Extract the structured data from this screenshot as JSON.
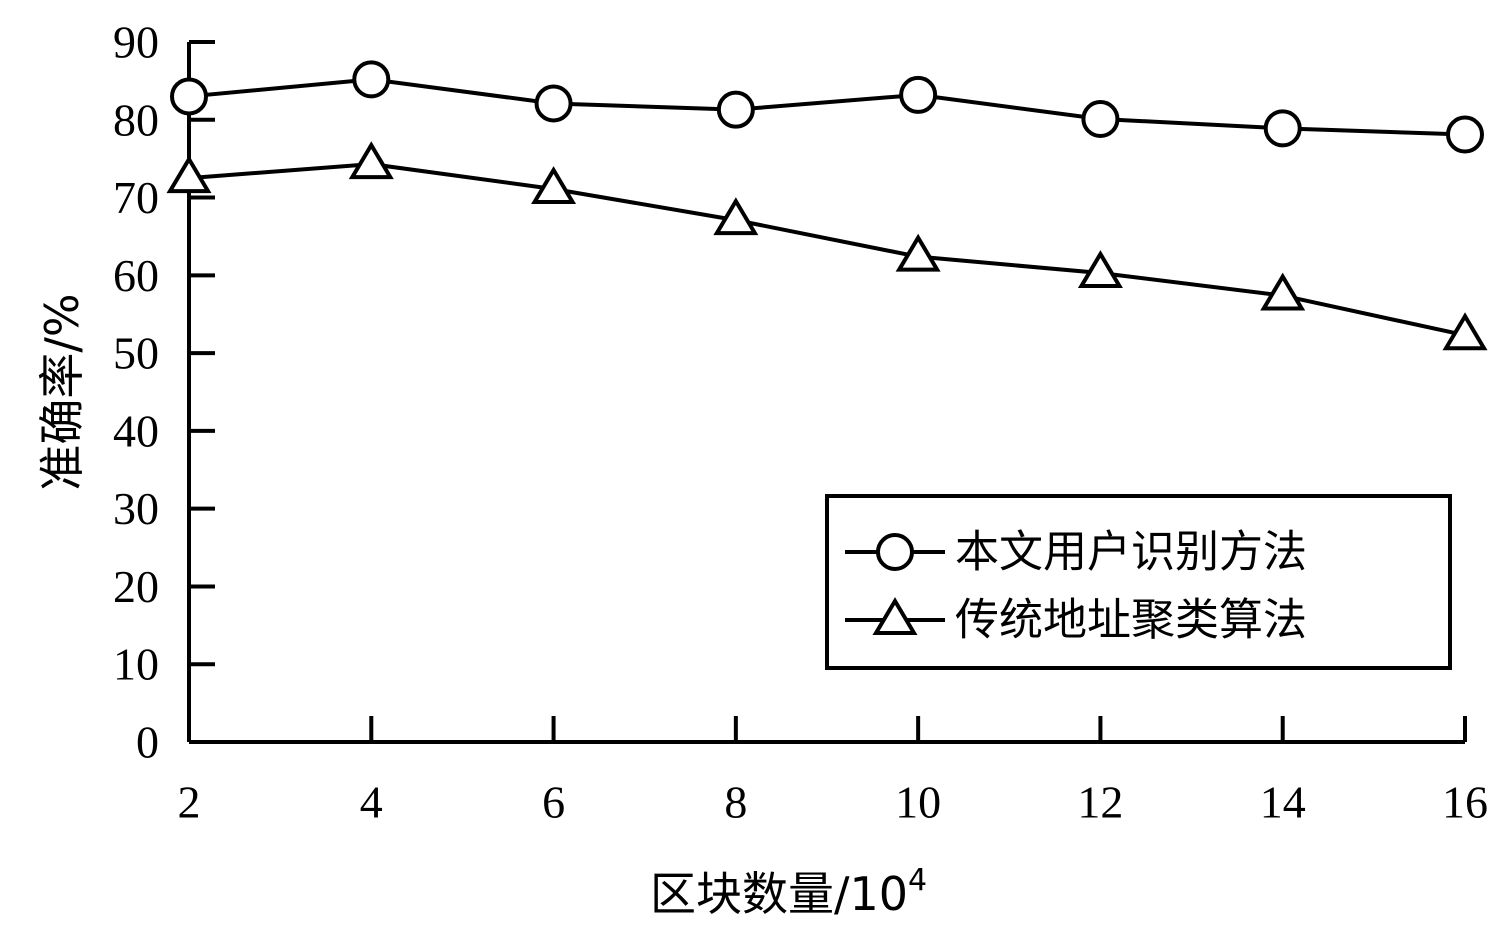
{
  "chart_data": {
    "type": "line",
    "title": "",
    "xlabel": "区块数量/10",
    "xlabel_superscript": "4",
    "ylabel": "准确率/%",
    "x": [
      2,
      4,
      6,
      8,
      10,
      12,
      14,
      16
    ],
    "xlim": [
      2,
      16
    ],
    "ylim": [
      0,
      90
    ],
    "x_ticks": [
      "2",
      "4",
      "6",
      "8",
      "10",
      "12",
      "14",
      "16"
    ],
    "y_ticks": [
      "0",
      "10",
      "20",
      "30",
      "40",
      "50",
      "60",
      "70",
      "80",
      "90"
    ],
    "grid": false,
    "legend_position": "lower-right",
    "series": [
      {
        "name": "本文用户识别方法",
        "marker": "circle",
        "values": [
          83.0,
          85.2,
          82.1,
          81.3,
          83.2,
          80.1,
          78.9,
          78.1
        ]
      },
      {
        "name": "传统地址聚类算法",
        "marker": "triangle",
        "values": [
          72.5,
          74.3,
          71.1,
          67.1,
          62.4,
          60.3,
          57.4,
          52.3
        ]
      }
    ]
  }
}
